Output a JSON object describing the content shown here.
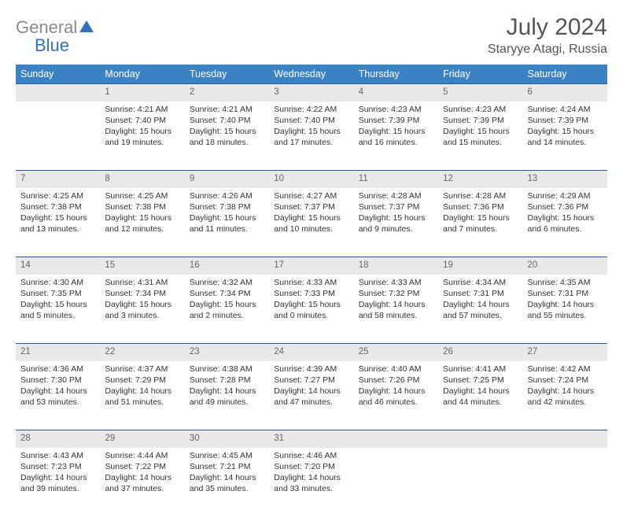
{
  "logo": {
    "gray": "General",
    "blue": "Blue"
  },
  "title": "July 2024",
  "location": "Staryye Atagi, Russia",
  "brand_blue": "#2f72b8",
  "header_bg": "#3b82c4",
  "stripe_bg": "#e9e9e9",
  "rule_color": "#2a5d8e",
  "dow": [
    "Sunday",
    "Monday",
    "Tuesday",
    "Wednesday",
    "Thursday",
    "Friday",
    "Saturday"
  ],
  "weeks": [
    [
      null,
      {
        "n": "1",
        "sr": "Sunrise: 4:21 AM",
        "ss": "Sunset: 7:40 PM",
        "dl": "Daylight: 15 hours and 19 minutes."
      },
      {
        "n": "2",
        "sr": "Sunrise: 4:21 AM",
        "ss": "Sunset: 7:40 PM",
        "dl": "Daylight: 15 hours and 18 minutes."
      },
      {
        "n": "3",
        "sr": "Sunrise: 4:22 AM",
        "ss": "Sunset: 7:40 PM",
        "dl": "Daylight: 15 hours and 17 minutes."
      },
      {
        "n": "4",
        "sr": "Sunrise: 4:23 AM",
        "ss": "Sunset: 7:39 PM",
        "dl": "Daylight: 15 hours and 16 minutes."
      },
      {
        "n": "5",
        "sr": "Sunrise: 4:23 AM",
        "ss": "Sunset: 7:39 PM",
        "dl": "Daylight: 15 hours and 15 minutes."
      },
      {
        "n": "6",
        "sr": "Sunrise: 4:24 AM",
        "ss": "Sunset: 7:39 PM",
        "dl": "Daylight: 15 hours and 14 minutes."
      }
    ],
    [
      {
        "n": "7",
        "sr": "Sunrise: 4:25 AM",
        "ss": "Sunset: 7:38 PM",
        "dl": "Daylight: 15 hours and 13 minutes."
      },
      {
        "n": "8",
        "sr": "Sunrise: 4:25 AM",
        "ss": "Sunset: 7:38 PM",
        "dl": "Daylight: 15 hours and 12 minutes."
      },
      {
        "n": "9",
        "sr": "Sunrise: 4:26 AM",
        "ss": "Sunset: 7:38 PM",
        "dl": "Daylight: 15 hours and 11 minutes."
      },
      {
        "n": "10",
        "sr": "Sunrise: 4:27 AM",
        "ss": "Sunset: 7:37 PM",
        "dl": "Daylight: 15 hours and 10 minutes."
      },
      {
        "n": "11",
        "sr": "Sunrise: 4:28 AM",
        "ss": "Sunset: 7:37 PM",
        "dl": "Daylight: 15 hours and 9 minutes."
      },
      {
        "n": "12",
        "sr": "Sunrise: 4:28 AM",
        "ss": "Sunset: 7:36 PM",
        "dl": "Daylight: 15 hours and 7 minutes."
      },
      {
        "n": "13",
        "sr": "Sunrise: 4:29 AM",
        "ss": "Sunset: 7:36 PM",
        "dl": "Daylight: 15 hours and 6 minutes."
      }
    ],
    [
      {
        "n": "14",
        "sr": "Sunrise: 4:30 AM",
        "ss": "Sunset: 7:35 PM",
        "dl": "Daylight: 15 hours and 5 minutes."
      },
      {
        "n": "15",
        "sr": "Sunrise: 4:31 AM",
        "ss": "Sunset: 7:34 PM",
        "dl": "Daylight: 15 hours and 3 minutes."
      },
      {
        "n": "16",
        "sr": "Sunrise: 4:32 AM",
        "ss": "Sunset: 7:34 PM",
        "dl": "Daylight: 15 hours and 2 minutes."
      },
      {
        "n": "17",
        "sr": "Sunrise: 4:33 AM",
        "ss": "Sunset: 7:33 PM",
        "dl": "Daylight: 15 hours and 0 minutes."
      },
      {
        "n": "18",
        "sr": "Sunrise: 4:33 AM",
        "ss": "Sunset: 7:32 PM",
        "dl": "Daylight: 14 hours and 58 minutes."
      },
      {
        "n": "19",
        "sr": "Sunrise: 4:34 AM",
        "ss": "Sunset: 7:31 PM",
        "dl": "Daylight: 14 hours and 57 minutes."
      },
      {
        "n": "20",
        "sr": "Sunrise: 4:35 AM",
        "ss": "Sunset: 7:31 PM",
        "dl": "Daylight: 14 hours and 55 minutes."
      }
    ],
    [
      {
        "n": "21",
        "sr": "Sunrise: 4:36 AM",
        "ss": "Sunset: 7:30 PM",
        "dl": "Daylight: 14 hours and 53 minutes."
      },
      {
        "n": "22",
        "sr": "Sunrise: 4:37 AM",
        "ss": "Sunset: 7:29 PM",
        "dl": "Daylight: 14 hours and 51 minutes."
      },
      {
        "n": "23",
        "sr": "Sunrise: 4:38 AM",
        "ss": "Sunset: 7:28 PM",
        "dl": "Daylight: 14 hours and 49 minutes."
      },
      {
        "n": "24",
        "sr": "Sunrise: 4:39 AM",
        "ss": "Sunset: 7:27 PM",
        "dl": "Daylight: 14 hours and 47 minutes."
      },
      {
        "n": "25",
        "sr": "Sunrise: 4:40 AM",
        "ss": "Sunset: 7:26 PM",
        "dl": "Daylight: 14 hours and 46 minutes."
      },
      {
        "n": "26",
        "sr": "Sunrise: 4:41 AM",
        "ss": "Sunset: 7:25 PM",
        "dl": "Daylight: 14 hours and 44 minutes."
      },
      {
        "n": "27",
        "sr": "Sunrise: 4:42 AM",
        "ss": "Sunset: 7:24 PM",
        "dl": "Daylight: 14 hours and 42 minutes."
      }
    ],
    [
      {
        "n": "28",
        "sr": "Sunrise: 4:43 AM",
        "ss": "Sunset: 7:23 PM",
        "dl": "Daylight: 14 hours and 39 minutes."
      },
      {
        "n": "29",
        "sr": "Sunrise: 4:44 AM",
        "ss": "Sunset: 7:22 PM",
        "dl": "Daylight: 14 hours and 37 minutes."
      },
      {
        "n": "30",
        "sr": "Sunrise: 4:45 AM",
        "ss": "Sunset: 7:21 PM",
        "dl": "Daylight: 14 hours and 35 minutes."
      },
      {
        "n": "31",
        "sr": "Sunrise: 4:46 AM",
        "ss": "Sunset: 7:20 PM",
        "dl": "Daylight: 14 hours and 33 minutes."
      },
      null,
      null,
      null
    ]
  ]
}
